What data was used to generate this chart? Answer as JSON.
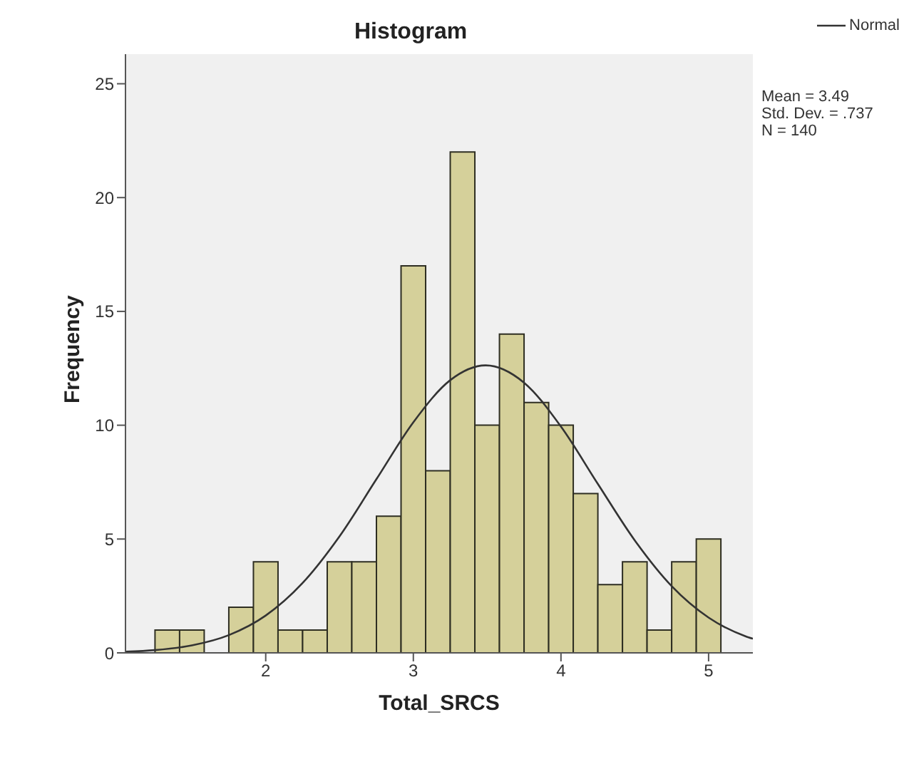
{
  "chart_data": {
    "type": "histogram",
    "title": "Histogram",
    "xlabel": "Total_SRCS",
    "ylabel": "Frequency",
    "bins": [
      1.25,
      1.4167,
      1.5833,
      1.75,
      1.9167,
      2.0833,
      2.25,
      2.4167,
      2.5833,
      2.75,
      2.9167,
      3.0833,
      3.25,
      3.4167,
      3.5833,
      3.75,
      3.9167,
      4.0833,
      4.25,
      4.4167,
      4.5833,
      4.75,
      4.9167,
      5.0833
    ],
    "values": [
      1,
      1,
      0,
      2,
      4,
      1,
      1,
      4,
      4,
      6,
      17,
      8,
      22,
      10,
      14,
      11,
      10,
      7,
      3,
      4,
      1,
      4,
      5
    ],
    "color": "#d5d09a",
    "series": [
      {
        "type": "line",
        "name": "Normal",
        "color": "#333333",
        "x": [
          1.05,
          1.25,
          1.5,
          1.75,
          2.0,
          2.25,
          2.5,
          2.75,
          3.0,
          3.25,
          3.49,
          3.75,
          4.0,
          4.25,
          4.5,
          4.75,
          5.0,
          5.25,
          5.3
        ],
        "values": [
          0.05,
          0.12,
          0.33,
          0.78,
          1.64,
          3.07,
          5.12,
          7.63,
          10.13,
          11.98,
          12.63,
          11.87,
          9.94,
          7.42,
          4.94,
          2.93,
          1.55,
          0.73,
          0.62
        ]
      }
    ],
    "xlim": [
      1.05,
      5.3
    ],
    "xticks": [
      2,
      3,
      4,
      5
    ],
    "ylim": [
      0,
      26.3
    ],
    "yticks": [
      0,
      5,
      10,
      15,
      20,
      25
    ],
    "grid": false,
    "legend": "top right",
    "annotations": [
      "Mean = 3.49",
      "Std. Dev. = .737",
      "N = 140"
    ]
  }
}
